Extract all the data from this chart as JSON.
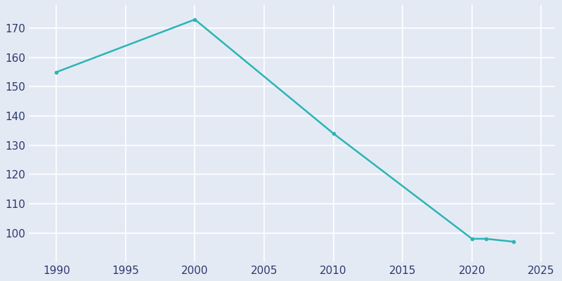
{
  "years": [
    1990,
    2000,
    2010,
    2020,
    2021,
    2023
  ],
  "population": [
    155,
    173,
    134,
    98,
    98,
    97
  ],
  "line_color": "#2ab5b5",
  "bg_color": "#e4eaf4",
  "grid_color": "#ffffff",
  "xlim": [
    1988,
    2026
  ],
  "ylim": [
    90,
    178
  ],
  "xticks": [
    1990,
    1995,
    2000,
    2005,
    2010,
    2015,
    2020,
    2025
  ],
  "yticks": [
    100,
    110,
    120,
    130,
    140,
    150,
    160,
    170
  ],
  "tick_label_color": "#2d3a6e",
  "tick_fontsize": 11
}
